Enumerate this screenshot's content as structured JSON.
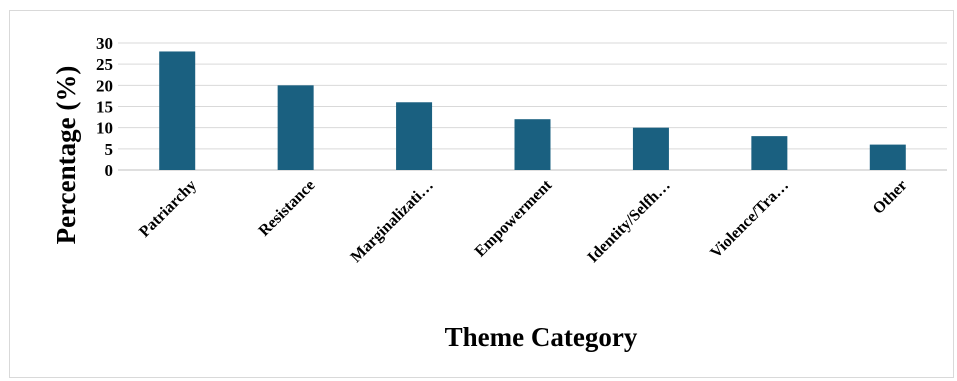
{
  "chart_data": {
    "type": "bar",
    "categories": [
      "Patriarchy",
      "Resistance",
      "Marginalizati…",
      "Empowerment",
      "Identity/Selfh…",
      "Violence/Tra…",
      "Other"
    ],
    "values": [
      28,
      20,
      16,
      12,
      10,
      8,
      6
    ],
    "title": "",
    "xlabel": "Theme Category",
    "ylabel": "Percentage (%)",
    "ylim": [
      0,
      30
    ],
    "yticks": [
      0,
      5,
      10,
      15,
      20,
      25,
      30
    ],
    "grid": true,
    "legend": "none",
    "bar_color": "#1a6080"
  }
}
